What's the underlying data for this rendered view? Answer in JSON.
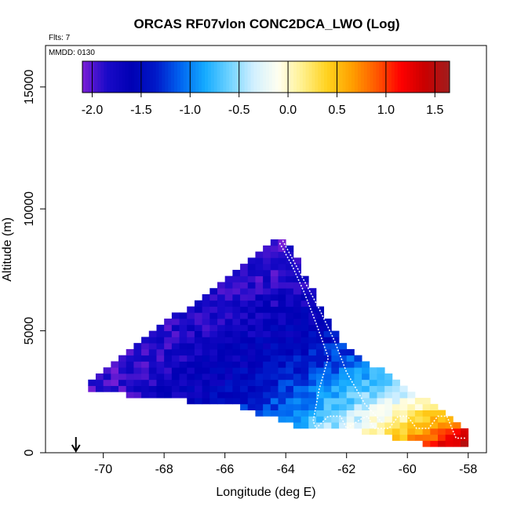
{
  "chart_data": {
    "type": "heatmap",
    "title": "ORCAS RF07vlon CONC2DCA_LWO (Log)",
    "flights_label": "Flts: 7",
    "date_label": "MMDD: 0130",
    "xlabel": "Longitude (deg E)",
    "ylabel": "Altitude (m)",
    "xlim": [
      -71.9,
      -57.4
    ],
    "ylim": [
      0,
      16700
    ],
    "x_ticks": [
      -70,
      -68,
      -66,
      -64,
      -62,
      -60,
      -58
    ],
    "x_tick_labels": [
      "-70",
      "-68",
      "-66",
      "-64",
      "-62",
      "-60",
      "-58"
    ],
    "y_ticks": [
      0,
      5000,
      10000,
      15000
    ],
    "y_tick_labels": [
      "0",
      "5000",
      "10000",
      "15000"
    ],
    "colorbar": {
      "range": [
        -2.1,
        1.65
      ],
      "ticks": [
        -2.0,
        -1.5,
        -1.0,
        -0.5,
        0.0,
        0.5,
        1.0,
        1.5
      ],
      "tick_labels": [
        "-2.0",
        "-1.5",
        "-1.0",
        "-0.5",
        "0.0",
        "0.5",
        "1.0",
        "1.5"
      ],
      "colors": [
        "#7b1fd6",
        "#1a0ac8",
        "#0000b4",
        "#0018c8",
        "#0064f0",
        "#14aaff",
        "#6ed2ff",
        "#d2f0ff",
        "#fffff0",
        "#fff08c",
        "#ffd21e",
        "#ffa000",
        "#ff5a00",
        "#ff0000",
        "#c80000",
        "#a01e1e"
      ]
    },
    "heatmap_region": {
      "polygon": [
        [
          -70.5,
          2800
        ],
        [
          -64.3,
          8900
        ],
        [
          -64.0,
          8800
        ],
        [
          -62.2,
          4500
        ],
        [
          -57.9,
          900
        ],
        [
          -57.9,
          250
        ],
        [
          -58.9,
          250
        ],
        [
          -62.5,
          1100
        ],
        [
          -63.7,
          1100
        ],
        [
          -65.5,
          1900
        ],
        [
          -67.0,
          2100
        ],
        [
          -68.5,
          2300
        ],
        [
          -70.5,
          2500
        ]
      ],
      "cell_width_deg": 0.25,
      "cell_height_m": 250
    },
    "flight_track": [
      [
        -64.2,
        8600
      ],
      [
        -63.8,
        7700
      ],
      [
        -63.4,
        6600
      ],
      [
        -63.0,
        5300
      ],
      [
        -62.6,
        3900
      ],
      [
        -62.9,
        2600
      ],
      [
        -63.1,
        1300
      ],
      [
        -63.0,
        1000
      ],
      [
        -62.6,
        1500
      ],
      [
        -62.2,
        1500
      ],
      [
        -62.0,
        1000
      ],
      [
        -61.5,
        1400
      ],
      [
        -61.3,
        1500
      ],
      [
        -61.1,
        1000
      ],
      [
        -60.6,
        1000
      ],
      [
        -60.3,
        1500
      ],
      [
        -60.0,
        1500
      ],
      [
        -59.7,
        1000
      ],
      [
        -59.3,
        1000
      ],
      [
        -59.0,
        1500
      ],
      [
        -58.7,
        1500
      ],
      [
        -58.4,
        600
      ],
      [
        -58.1,
        600
      ]
    ],
    "flight_track_2": [
      [
        -64.1,
        8700
      ],
      [
        -63.5,
        7300
      ],
      [
        -62.9,
        5900
      ],
      [
        -62.4,
        4600
      ],
      [
        -62.0,
        3300
      ],
      [
        -61.4,
        2000
      ],
      [
        -60.8,
        1200
      ]
    ],
    "arrow": {
      "x": -70.9,
      "label": ""
    }
  }
}
